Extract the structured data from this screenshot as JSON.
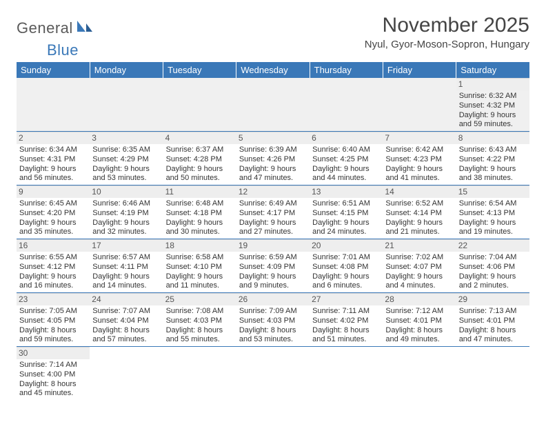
{
  "logo": {
    "word1": "General",
    "word2": "Blue"
  },
  "title": "November 2025",
  "location": "Nyul, Gyor-Moson-Sopron, Hungary",
  "weekdays": [
    "Sunday",
    "Monday",
    "Tuesday",
    "Wednesday",
    "Thursday",
    "Friday",
    "Saturday"
  ],
  "weeks": [
    [
      null,
      null,
      null,
      null,
      null,
      null,
      {
        "n": "1",
        "sunrise": "6:32 AM",
        "sunset": "4:32 PM",
        "day": "9 hours and 59 minutes."
      }
    ],
    [
      {
        "n": "2",
        "sunrise": "6:34 AM",
        "sunset": "4:31 PM",
        "day": "9 hours and 56 minutes."
      },
      {
        "n": "3",
        "sunrise": "6:35 AM",
        "sunset": "4:29 PM",
        "day": "9 hours and 53 minutes."
      },
      {
        "n": "4",
        "sunrise": "6:37 AM",
        "sunset": "4:28 PM",
        "day": "9 hours and 50 minutes."
      },
      {
        "n": "5",
        "sunrise": "6:39 AM",
        "sunset": "4:26 PM",
        "day": "9 hours and 47 minutes."
      },
      {
        "n": "6",
        "sunrise": "6:40 AM",
        "sunset": "4:25 PM",
        "day": "9 hours and 44 minutes."
      },
      {
        "n": "7",
        "sunrise": "6:42 AM",
        "sunset": "4:23 PM",
        "day": "9 hours and 41 minutes."
      },
      {
        "n": "8",
        "sunrise": "6:43 AM",
        "sunset": "4:22 PM",
        "day": "9 hours and 38 minutes."
      }
    ],
    [
      {
        "n": "9",
        "sunrise": "6:45 AM",
        "sunset": "4:20 PM",
        "day": "9 hours and 35 minutes."
      },
      {
        "n": "10",
        "sunrise": "6:46 AM",
        "sunset": "4:19 PM",
        "day": "9 hours and 32 minutes."
      },
      {
        "n": "11",
        "sunrise": "6:48 AM",
        "sunset": "4:18 PM",
        "day": "9 hours and 30 minutes."
      },
      {
        "n": "12",
        "sunrise": "6:49 AM",
        "sunset": "4:17 PM",
        "day": "9 hours and 27 minutes."
      },
      {
        "n": "13",
        "sunrise": "6:51 AM",
        "sunset": "4:15 PM",
        "day": "9 hours and 24 minutes."
      },
      {
        "n": "14",
        "sunrise": "6:52 AM",
        "sunset": "4:14 PM",
        "day": "9 hours and 21 minutes."
      },
      {
        "n": "15",
        "sunrise": "6:54 AM",
        "sunset": "4:13 PM",
        "day": "9 hours and 19 minutes."
      }
    ],
    [
      {
        "n": "16",
        "sunrise": "6:55 AM",
        "sunset": "4:12 PM",
        "day": "9 hours and 16 minutes."
      },
      {
        "n": "17",
        "sunrise": "6:57 AM",
        "sunset": "4:11 PM",
        "day": "9 hours and 14 minutes."
      },
      {
        "n": "18",
        "sunrise": "6:58 AM",
        "sunset": "4:10 PM",
        "day": "9 hours and 11 minutes."
      },
      {
        "n": "19",
        "sunrise": "6:59 AM",
        "sunset": "4:09 PM",
        "day": "9 hours and 9 minutes."
      },
      {
        "n": "20",
        "sunrise": "7:01 AM",
        "sunset": "4:08 PM",
        "day": "9 hours and 6 minutes."
      },
      {
        "n": "21",
        "sunrise": "7:02 AM",
        "sunset": "4:07 PM",
        "day": "9 hours and 4 minutes."
      },
      {
        "n": "22",
        "sunrise": "7:04 AM",
        "sunset": "4:06 PM",
        "day": "9 hours and 2 minutes."
      }
    ],
    [
      {
        "n": "23",
        "sunrise": "7:05 AM",
        "sunset": "4:05 PM",
        "day": "8 hours and 59 minutes."
      },
      {
        "n": "24",
        "sunrise": "7:07 AM",
        "sunset": "4:04 PM",
        "day": "8 hours and 57 minutes."
      },
      {
        "n": "25",
        "sunrise": "7:08 AM",
        "sunset": "4:03 PM",
        "day": "8 hours and 55 minutes."
      },
      {
        "n": "26",
        "sunrise": "7:09 AM",
        "sunset": "4:03 PM",
        "day": "8 hours and 53 minutes."
      },
      {
        "n": "27",
        "sunrise": "7:11 AM",
        "sunset": "4:02 PM",
        "day": "8 hours and 51 minutes."
      },
      {
        "n": "28",
        "sunrise": "7:12 AM",
        "sunset": "4:01 PM",
        "day": "8 hours and 49 minutes."
      },
      {
        "n": "29",
        "sunrise": "7:13 AM",
        "sunset": "4:01 PM",
        "day": "8 hours and 47 minutes."
      }
    ],
    [
      {
        "n": "30",
        "sunrise": "7:14 AM",
        "sunset": "4:00 PM",
        "day": "8 hours and 45 minutes."
      },
      null,
      null,
      null,
      null,
      null,
      null
    ]
  ],
  "labels": {
    "sunrise": "Sunrise: ",
    "sunset": "Sunset: ",
    "daylight": "Daylight: "
  },
  "colors": {
    "header_bg": "#3a78b8",
    "header_fg": "#ffffff",
    "row_border": "#3a78b8",
    "daynum_bg": "#eeeeee",
    "page_bg": "#ffffff",
    "text": "#333333"
  }
}
